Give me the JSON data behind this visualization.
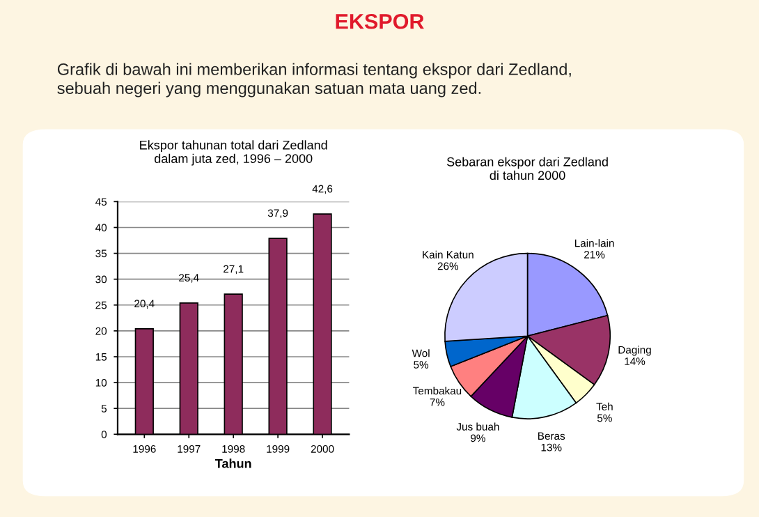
{
  "chart_data": [
    {
      "type": "bar",
      "title": "Ekspor tahunan total dari Zedland\ndalam juta zed, 1996 – 2000",
      "xlabel": "Tahun",
      "annotations": [
        "EKSPOR",
        "Grafik di bawah ini memberikan informasi tentang ekspor dari Zedland,\nsebuah negeri yang menggunakan satuan mata uang zed."
      ],
      "categories": [
        "1996",
        "1997",
        "1998",
        "1999",
        "2000"
      ],
      "values": [
        20.4,
        25.4,
        27.1,
        37.9,
        42.6
      ],
      "value_labels": [
        "20,4",
        "25,4",
        "27,1",
        "37,9",
        "42,6"
      ],
      "color": "#8e2c5c",
      "ylim": [
        0,
        45
      ],
      "yticks": [
        0,
        5,
        10,
        15,
        20,
        25,
        30,
        35,
        40,
        45
      ],
      "grid": "y",
      "legend": false
    },
    {
      "type": "pie",
      "title": "Sebaran ekspor dari Zedland\ndi tahun 2000",
      "categories": [
        "Lain-lain",
        "Daging",
        "Teh",
        "Beras",
        "Jus buah",
        "Tembakau",
        "Wol",
        "Kain Katun"
      ],
      "values": [
        21,
        14,
        5,
        13,
        9,
        7,
        5,
        26
      ],
      "value_labels": [
        "21%",
        "14%",
        "5%",
        "13%",
        "9%",
        "7%",
        "5%",
        "26%"
      ],
      "colors": [
        "#9999ff",
        "#993366",
        "#ffffcc",
        "#ccffff",
        "#660066",
        "#ff8080",
        "#0066cc",
        "#ccccff"
      ]
    }
  ]
}
